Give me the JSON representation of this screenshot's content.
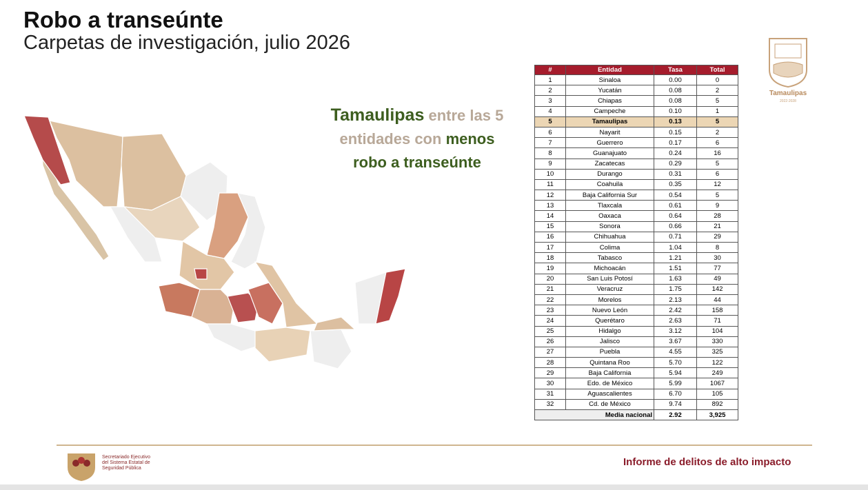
{
  "header": {
    "title": "Robo a transeúnte",
    "subtitle": "Carpetas de investigación, julio 2026"
  },
  "callout": [
    "Tamaulipas",
    "entre las 5",
    "entidades con",
    "menos",
    "robo a transeúnte"
  ],
  "table": {
    "columns": [
      "#",
      "Entidad",
      "Tasa",
      "Total"
    ],
    "rows": [
      [
        "1",
        "Sinaloa",
        "0.00",
        "0"
      ],
      [
        "2",
        "Yucatán",
        "0.08",
        "2"
      ],
      [
        "3",
        "Chiapas",
        "0.08",
        "5"
      ],
      [
        "4",
        "Campeche",
        "0.10",
        "1"
      ],
      [
        "5",
        "Tamaulipas",
        "0.13",
        "5"
      ],
      [
        "6",
        "Nayarit",
        "0.15",
        "2"
      ],
      [
        "7",
        "Guerrero",
        "0.17",
        "6"
      ],
      [
        "8",
        "Guanajuato",
        "0.24",
        "16"
      ],
      [
        "9",
        "Zacatecas",
        "0.29",
        "5"
      ],
      [
        "10",
        "Durango",
        "0.31",
        "6"
      ],
      [
        "11",
        "Coahuila",
        "0.35",
        "12"
      ],
      [
        "12",
        "Baja California Sur",
        "0.54",
        "5"
      ],
      [
        "13",
        "Tlaxcala",
        "0.61",
        "9"
      ],
      [
        "14",
        "Oaxaca",
        "0.64",
        "28"
      ],
      [
        "15",
        "Sonora",
        "0.66",
        "21"
      ],
      [
        "16",
        "Chihuahua",
        "0.71",
        "29"
      ],
      [
        "17",
        "Colima",
        "1.04",
        "8"
      ],
      [
        "18",
        "Tabasco",
        "1.21",
        "30"
      ],
      [
        "19",
        "Michoacán",
        "1.51",
        "77"
      ],
      [
        "20",
        "San Luis Potosí",
        "1.63",
        "49"
      ],
      [
        "21",
        "Veracruz",
        "1.75",
        "142"
      ],
      [
        "22",
        "Morelos",
        "2.13",
        "44"
      ],
      [
        "23",
        "Nuevo León",
        "2.42",
        "158"
      ],
      [
        "24",
        "Querétaro",
        "2.63",
        "71"
      ],
      [
        "25",
        "Hidalgo",
        "3.12",
        "104"
      ],
      [
        "26",
        "Jalisco",
        "3.67",
        "330"
      ],
      [
        "27",
        "Puebla",
        "4.55",
        "325"
      ],
      [
        "28",
        "Quintana Roo",
        "5.70",
        "122"
      ],
      [
        "29",
        "Baja California",
        "5.94",
        "249"
      ],
      [
        "30",
        "Edo. de México",
        "5.99",
        "1067"
      ],
      [
        "31",
        "Aguascalientes",
        "6.70",
        "105"
      ],
      [
        "32",
        "Cd. de México",
        "9.74",
        "892"
      ]
    ],
    "footer": [
      "Media nacional",
      "2.92",
      "3,925"
    ]
  },
  "logo": {
    "name": "Tamaulipas",
    "years": "2022-2028"
  },
  "footer": {
    "institution": [
      "Secretariado Ejecutivo",
      "del Sistema Estatal de",
      "Seguridad Pública"
    ],
    "report": "Informe de delitos de alto impacto"
  }
}
